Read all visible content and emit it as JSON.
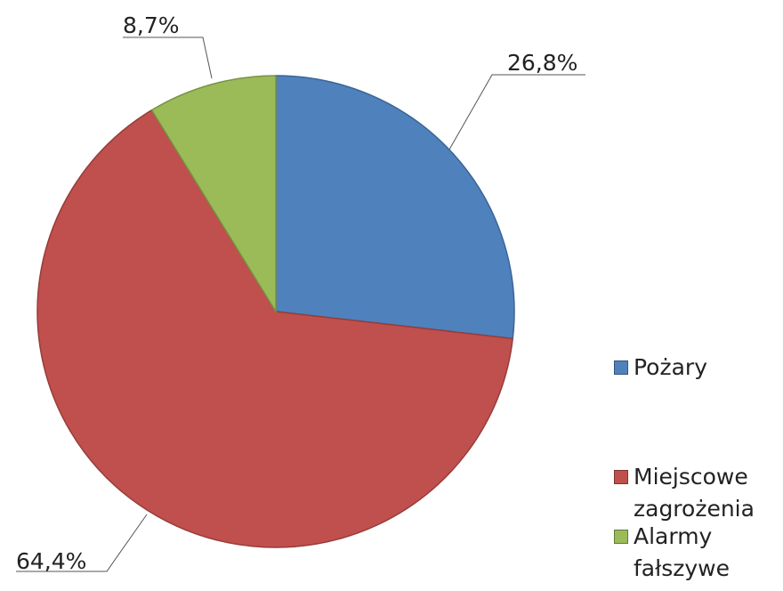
{
  "chart_data": {
    "type": "pie",
    "categories": [
      "Pożary",
      "Miejscowe zagrożenia",
      "Alarmy fałszywe"
    ],
    "values": [
      26.8,
      64.4,
      8.7
    ],
    "value_labels": [
      "26,8%",
      "64,4%",
      "8,7%"
    ],
    "colors": [
      "#4f81bd",
      "#c0504d",
      "#9bbb59"
    ],
    "legend": "right"
  }
}
